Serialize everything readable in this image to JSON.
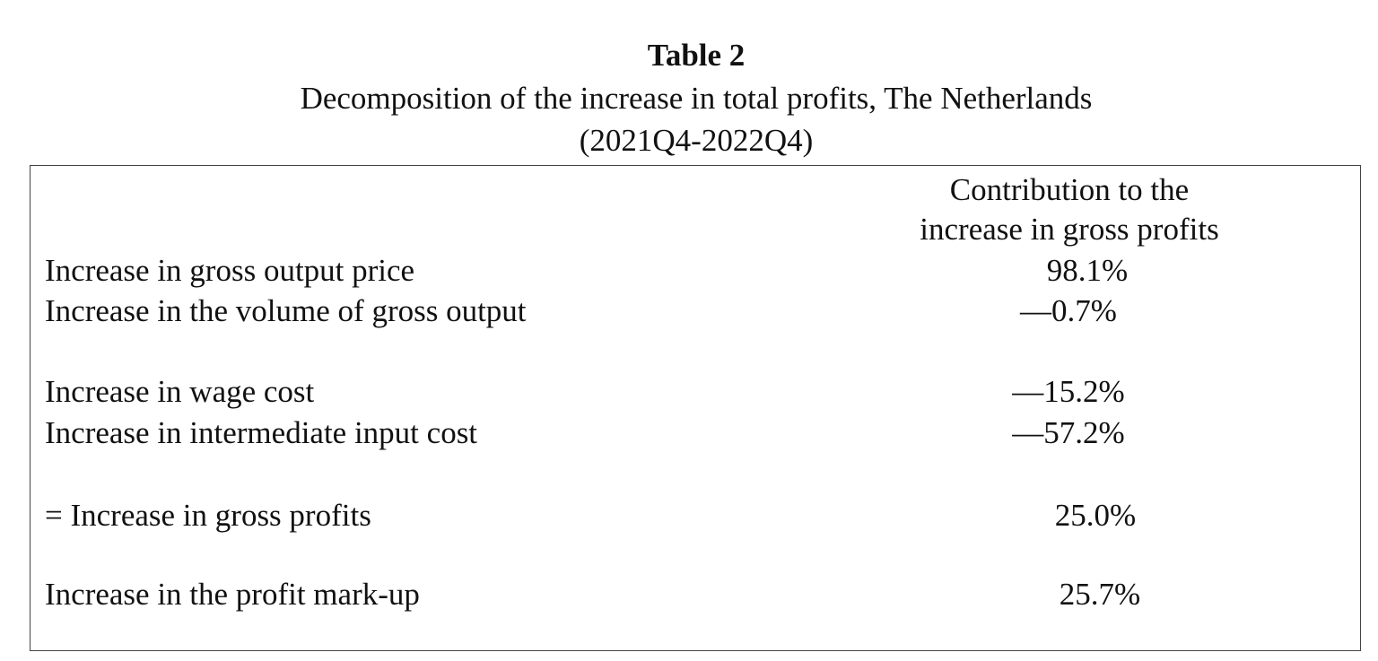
{
  "title": "Table 2",
  "subtitle": "Decomposition of the increase in total profits, The Netherlands",
  "period": "(2021Q4-2022Q4)",
  "column_header": [
    "Contribution to the",
    "increase in gross profits"
  ],
  "rows": [
    {
      "label": "Increase in gross output price",
      "value": "98.1%"
    },
    {
      "label": "Increase in the volume of gross output",
      "value": "—0.7%"
    },
    {
      "label": "Increase in wage cost",
      "value": "—15.2%"
    },
    {
      "label": "Increase in intermediate input cost",
      "value": "—57.2%"
    },
    {
      "label": "= Increase in gross profits",
      "value": "25.0%"
    },
    {
      "label": "Increase in the profit mark-up",
      "value": "25.7%"
    }
  ]
}
